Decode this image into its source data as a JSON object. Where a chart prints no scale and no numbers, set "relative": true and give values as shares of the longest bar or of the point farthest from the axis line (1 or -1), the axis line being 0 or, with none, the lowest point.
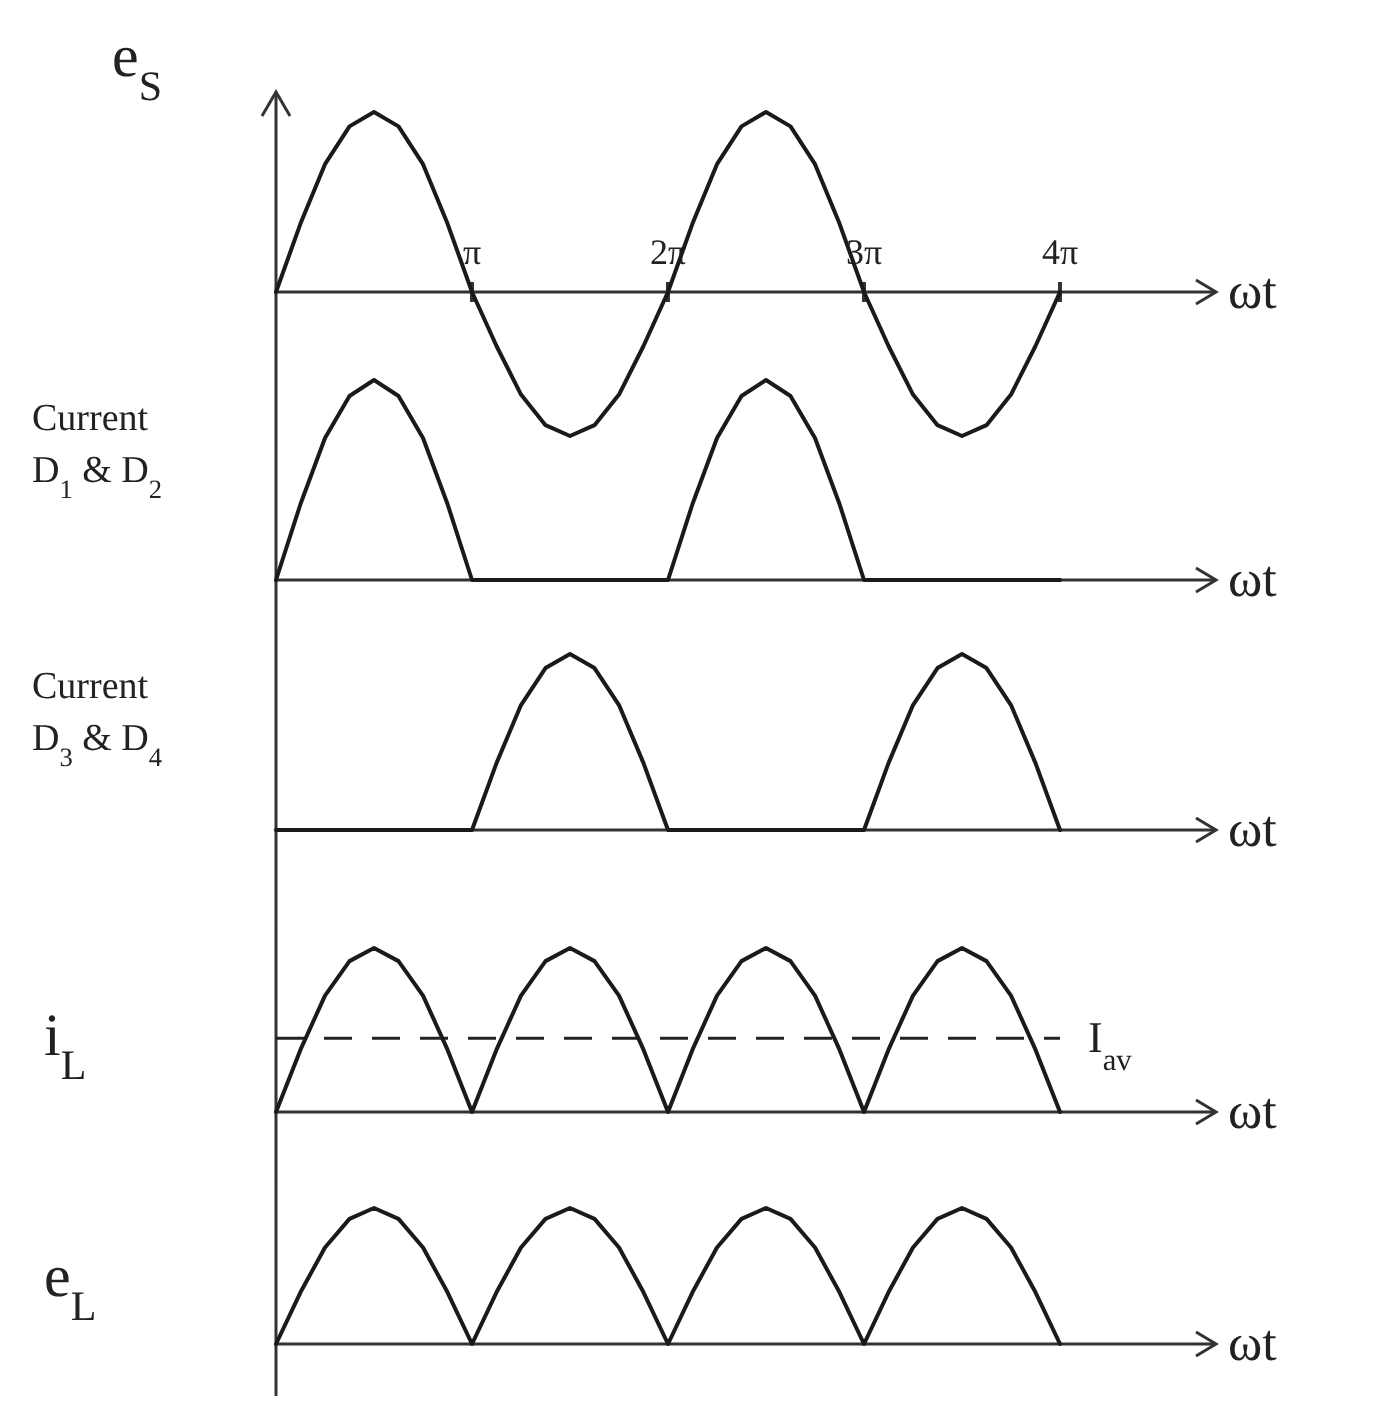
{
  "chart_data": [
    {
      "type": "line",
      "ylabel": "e$_{S}$",
      "xlabel": "ωt",
      "relative": true,
      "color": "#1a1a1a",
      "categories": [
        null,
        null,
        null,
        null,
        null,
        null,
        null,
        null,
        "π",
        null,
        null,
        null,
        null,
        null,
        null,
        null,
        "2π",
        null,
        null,
        null,
        null,
        null,
        null,
        null,
        "3π",
        null,
        null,
        null,
        null,
        null,
        null,
        null,
        "4π"
      ],
      "values": [
        0,
        0.38,
        0.71,
        0.92,
        1,
        0.92,
        0.71,
        0.38,
        0,
        -0.3,
        -0.57,
        -0.74,
        -0.8,
        -0.74,
        -0.57,
        -0.3,
        0,
        0.38,
        0.71,
        0.92,
        1,
        0.92,
        0.71,
        0.38,
        0,
        -0.3,
        -0.57,
        -0.74,
        -0.8,
        -0.74,
        -0.57,
        -0.3,
        0
      ]
    },
    {
      "type": "line",
      "ylabel": "Current D$_{1}$ & D$_{2}$",
      "xlabel": "ωt",
      "relative": true,
      "color": "#1a1a1a",
      "categories": [
        null,
        null,
        null,
        null,
        null,
        null,
        null,
        null,
        null,
        null,
        null,
        null,
        null,
        null,
        null,
        null,
        null,
        null,
        null,
        null,
        null,
        null,
        null,
        null,
        null,
        null,
        null,
        null,
        null,
        null,
        null,
        null,
        null
      ],
      "values": [
        0,
        0.38,
        0.71,
        0.92,
        1,
        0.92,
        0.71,
        0.38,
        0,
        0,
        0,
        0,
        0,
        0,
        0,
        0,
        0,
        0.38,
        0.71,
        0.92,
        1,
        0.92,
        0.71,
        0.38,
        0,
        0,
        0,
        0,
        0,
        0,
        0,
        0,
        0
      ]
    },
    {
      "type": "line",
      "ylabel": "Current D$_{3}$ & D$_{4}$",
      "xlabel": "ωt",
      "relative": true,
      "color": "#1a1a1a",
      "categories": [
        null,
        null,
        null,
        null,
        null,
        null,
        null,
        null,
        null,
        null,
        null,
        null,
        null,
        null,
        null,
        null,
        null,
        null,
        null,
        null,
        null,
        null,
        null,
        null,
        null,
        null,
        null,
        null,
        null,
        null,
        null,
        null,
        null
      ],
      "values": [
        0,
        0,
        0,
        0,
        0,
        0,
        0,
        0,
        0,
        0.38,
        0.71,
        0.92,
        1,
        0.92,
        0.71,
        0.38,
        0,
        0,
        0,
        0,
        0,
        0,
        0,
        0,
        0,
        0.38,
        0.71,
        0.92,
        1,
        0.92,
        0.71,
        0.38,
        0
      ]
    },
    {
      "type": "line",
      "ylabel": "i$_{L}$",
      "xlabel": "ωt",
      "relative": true,
      "color": "#1a1a1a",
      "ref_lines": [
        {
          "axis": "y",
          "value": 0.45,
          "label": "I$_{av}$",
          "line_style": "dashed"
        }
      ],
      "categories": [
        null,
        null,
        null,
        null,
        null,
        null,
        null,
        null,
        null,
        null,
        null,
        null,
        null,
        null,
        null,
        null,
        null,
        null,
        null,
        null,
        null,
        null,
        null,
        null,
        null,
        null,
        null,
        null,
        null,
        null,
        null,
        null,
        null
      ],
      "values": [
        0,
        0.38,
        0.71,
        0.92,
        1,
        0.92,
        0.71,
        0.38,
        0,
        0.38,
        0.71,
        0.92,
        1,
        0.92,
        0.71,
        0.38,
        0,
        0.38,
        0.71,
        0.92,
        1,
        0.92,
        0.71,
        0.38,
        0,
        0.38,
        0.71,
        0.92,
        1,
        0.92,
        0.71,
        0.38,
        0
      ]
    },
    {
      "type": "line",
      "ylabel": "e$_{L}$",
      "xlabel": "ωt",
      "relative": true,
      "color": "#1a1a1a",
      "categories": [
        null,
        null,
        null,
        null,
        null,
        null,
        null,
        null,
        null,
        null,
        null,
        null,
        null,
        null,
        null,
        null,
        null,
        null,
        null,
        null,
        null,
        null,
        null,
        null,
        null,
        null,
        null,
        null,
        null,
        null,
        null,
        null,
        null
      ],
      "values": [
        0,
        0.38,
        0.71,
        0.92,
        1,
        0.92,
        0.71,
        0.38,
        0,
        0.38,
        0.71,
        0.92,
        1,
        0.92,
        0.71,
        0.38,
        0,
        0.38,
        0.71,
        0.92,
        1,
        0.92,
        0.71,
        0.38,
        0,
        0.38,
        0.71,
        0.92,
        1,
        0.92,
        0.71,
        0.38,
        0
      ]
    }
  ]
}
